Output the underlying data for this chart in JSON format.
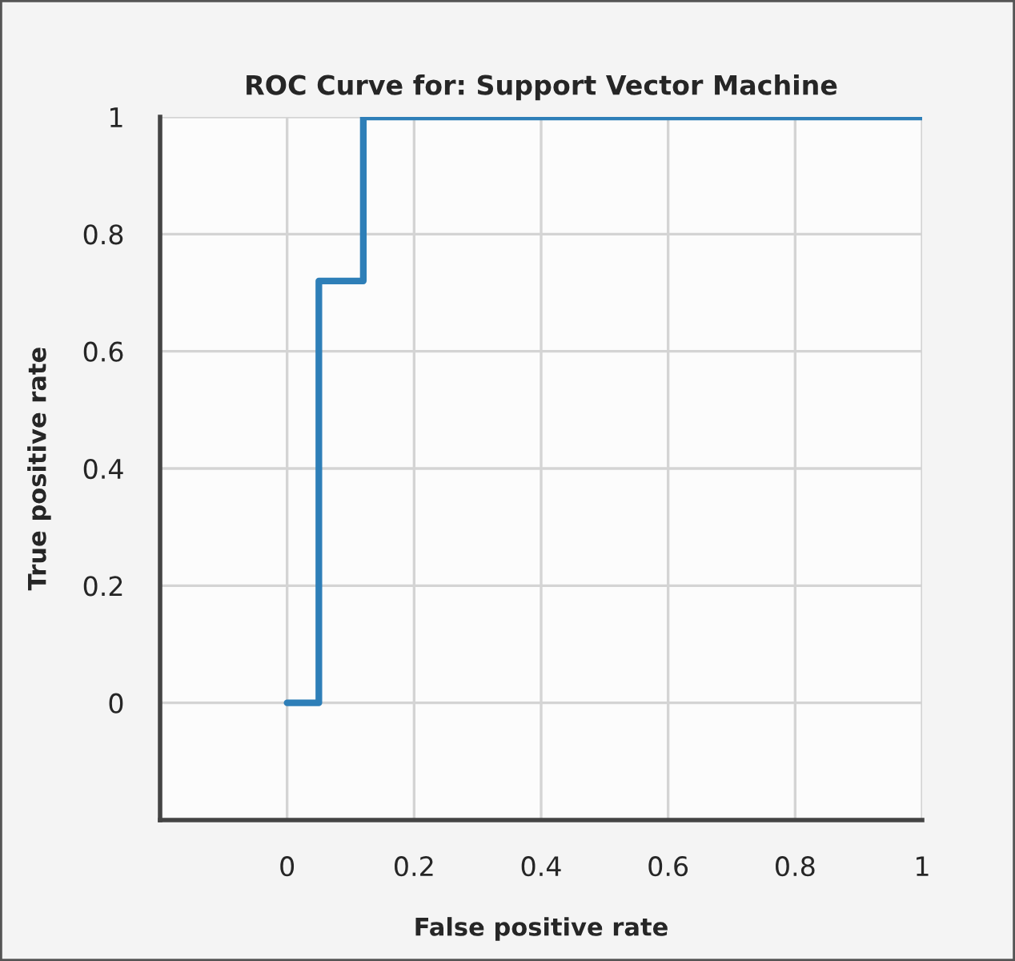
{
  "chart_data": {
    "type": "step",
    "title": "ROC Curve for: Support Vector Machine",
    "xlabel": "False positive rate",
    "ylabel": "True positive rate",
    "x": [
      0,
      0.05,
      0.12,
      1
    ],
    "series": [
      {
        "color": "#2e7fb8",
        "values": [
          0,
          0.72,
          1,
          1
        ]
      }
    ],
    "xlim": [
      -0.2,
      1
    ],
    "ylim": [
      -0.2,
      1
    ],
    "xticks": [
      0,
      0.2,
      0.4,
      0.6,
      0.8,
      1
    ],
    "yticks": [
      0,
      0.2,
      0.4,
      0.6,
      0.8,
      1
    ],
    "grid": true,
    "line_style": "solid"
  }
}
